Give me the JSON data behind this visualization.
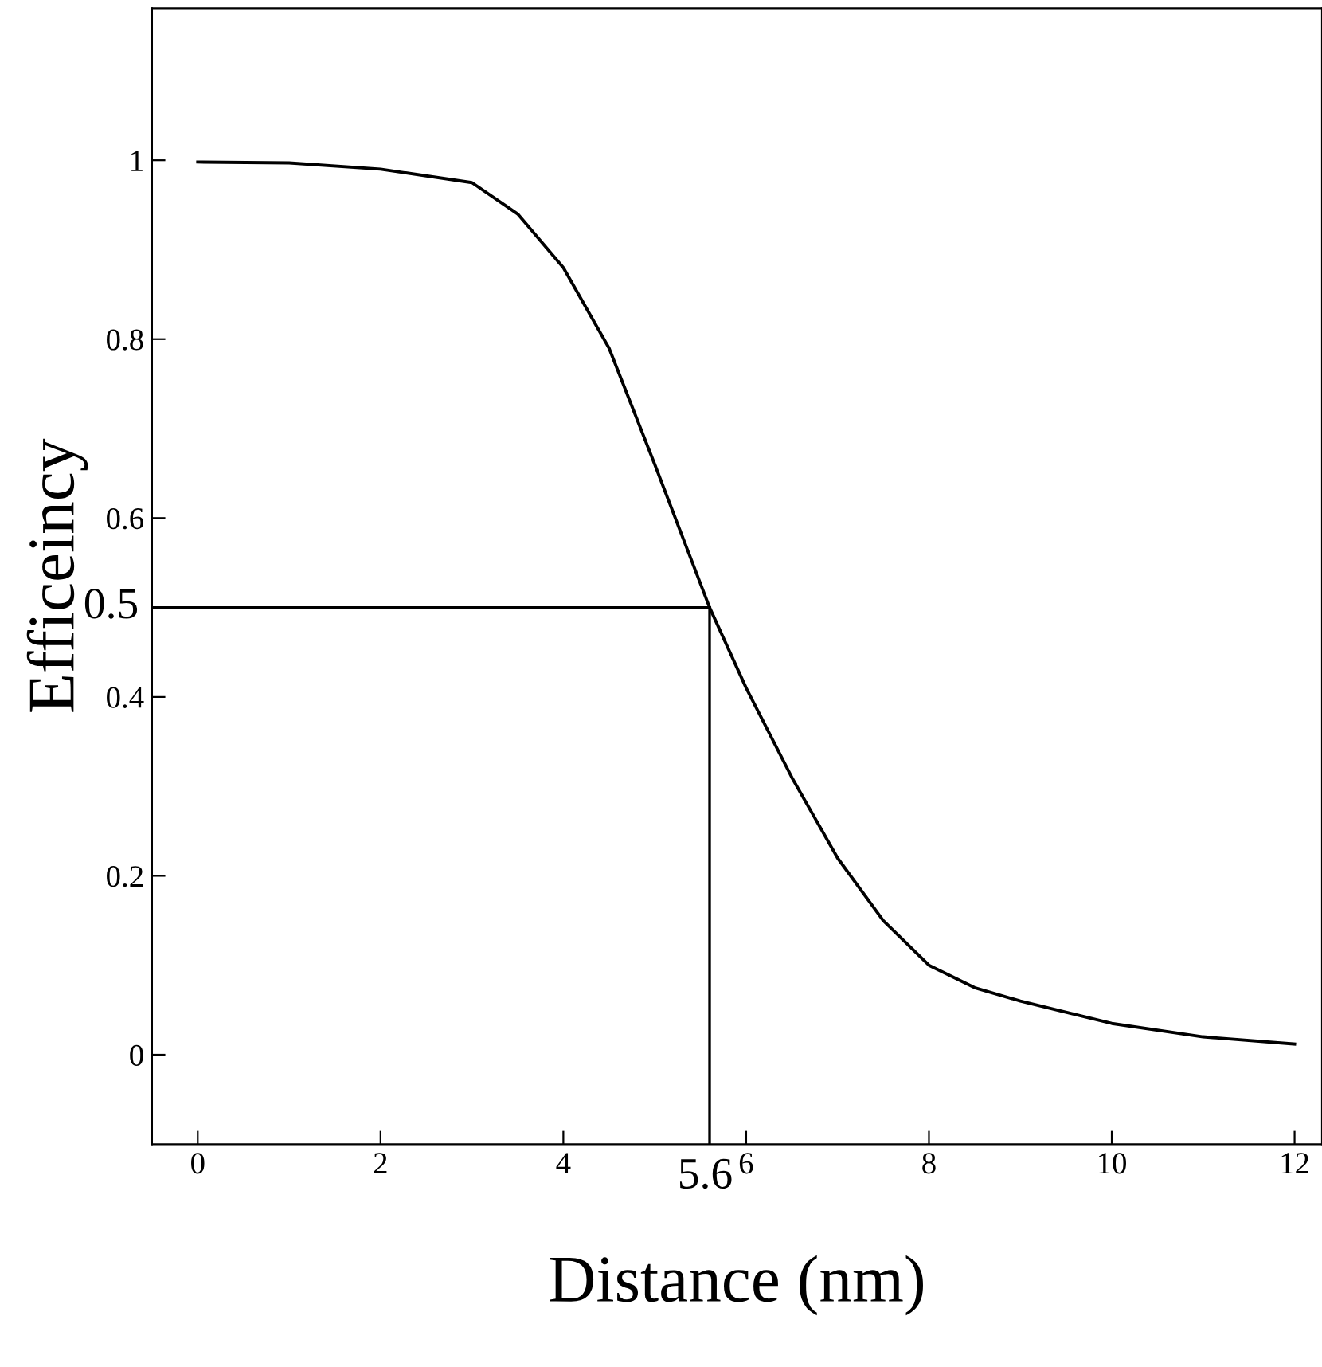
{
  "chart_data": {
    "type": "line",
    "xlabel": "Distance (nm)",
    "ylabel": "Efficeincy",
    "x": [
      0,
      1,
      2,
      3,
      3.5,
      4,
      4.5,
      5,
      5.6,
      6,
      6.5,
      7,
      7.5,
      8,
      8.5,
      9,
      10,
      11,
      12
    ],
    "series": [
      {
        "color": "#000000",
        "values": [
          0.998,
          0.997,
          0.99,
          0.975,
          0.94,
          0.88,
          0.79,
          0.66,
          0.5,
          0.41,
          0.31,
          0.22,
          0.15,
          0.1,
          0.075,
          0.06,
          0.035,
          0.02,
          0.012
        ]
      }
    ],
    "xlim": [
      -0.5,
      12.3
    ],
    "ylim": [
      -0.1,
      1.17
    ],
    "xticks": [
      0,
      2,
      4,
      6,
      8,
      10,
      12
    ],
    "yticks": [
      0,
      0.2,
      0.4,
      0.6,
      0.8,
      1
    ],
    "ref_lines": [
      {
        "axis": "y",
        "value": 0.5,
        "label": "0.5",
        "color": "#000000"
      },
      {
        "axis": "x",
        "value": 5.6,
        "label": "5.6",
        "color": "#000000"
      }
    ],
    "grid": false,
    "legend": false
  }
}
